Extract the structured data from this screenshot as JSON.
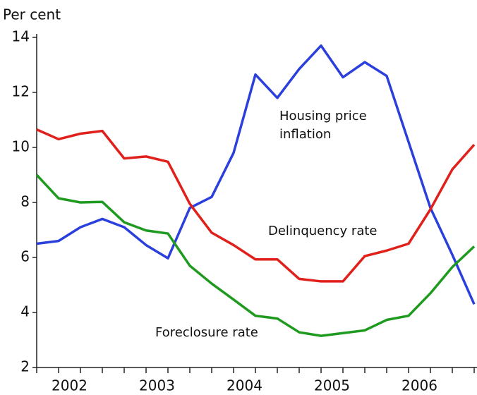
{
  "chart_data": {
    "type": "line",
    "y_label": "Per cent",
    "categories": [
      null,
      "2002",
      null,
      null,
      null,
      "2003",
      null,
      null,
      null,
      "2004",
      null,
      null,
      null,
      "2005",
      null,
      null,
      null,
      "2006",
      null,
      null,
      null
    ],
    "ylim": [
      2,
      14
    ],
    "yticks": [
      2,
      4,
      6,
      8,
      10,
      12,
      14
    ],
    "series": [
      {
        "name": "Housing price inflation",
        "color": "#2b3fdc",
        "values": [
          6.5,
          6.6,
          7.1,
          7.4,
          7.1,
          6.45,
          5.97,
          7.8,
          8.2,
          9.8,
          12.65,
          11.8,
          12.85,
          13.7,
          12.55,
          13.1,
          12.6,
          10.2,
          7.8,
          6.1,
          4.3
        ]
      },
      {
        "name": "Delinquency rate",
        "color": "#e0201b",
        "values": [
          10.65,
          10.3,
          10.5,
          10.6,
          9.6,
          9.67,
          9.48,
          7.95,
          6.9,
          6.45,
          5.93,
          5.93,
          5.22,
          5.13,
          5.13,
          6.05,
          6.25,
          6.5,
          7.75,
          9.2,
          10.1
        ]
      },
      {
        "name": "Foreclosure rate",
        "color": "#1e9a1e",
        "values": [
          9.0,
          8.15,
          8.0,
          8.02,
          7.28,
          6.98,
          6.87,
          5.7,
          5.05,
          4.47,
          3.88,
          3.78,
          3.28,
          3.15,
          3.25,
          3.35,
          3.73,
          3.88,
          4.7,
          5.65,
          6.4
        ]
      }
    ]
  }
}
